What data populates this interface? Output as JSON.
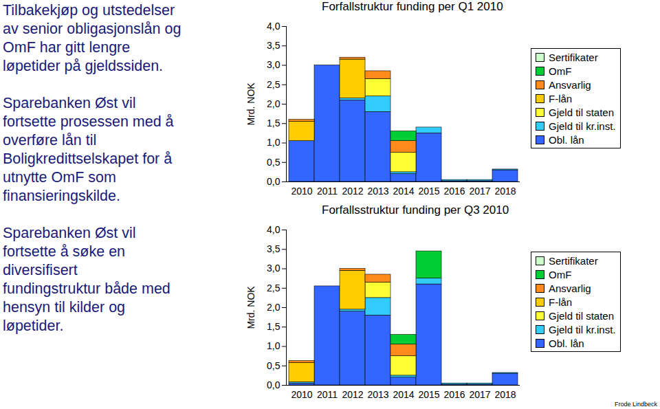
{
  "slide": {
    "paragraphs": [
      [
        "Tilbakekjøp og utstedelser",
        "av senior obligasjonslån og",
        "OmF har gitt lengre",
        "løpetider på gjeldssiden."
      ],
      [
        "Sparebanken Øst vil",
        "fortsette prosessen med å",
        "overføre lån til",
        "Boligkredittselskapet for å",
        "utnytte OmF som",
        "finansieringskilde."
      ],
      [
        "Sparebanken Øst vil",
        "fortsette å søke en",
        "diversifisert",
        "fundingstruktur både med",
        "hensyn til kilder og",
        "løpetider."
      ]
    ],
    "footer": "Frode Lindbeck"
  },
  "chart_data": [
    {
      "type": "bar",
      "stacked": true,
      "legend": "right",
      "title": "Forfallstruktur funding per Q1 2010",
      "ylabel": "Mrd. NOK",
      "categories": [
        "2010",
        "2011",
        "2012",
        "2013",
        "2014",
        "2015",
        "2016",
        "2017",
        "2018"
      ],
      "ylim": [
        0,
        4
      ],
      "yticks": [
        {
          "value": 0,
          "label": "0,0"
        },
        {
          "value": 0.5,
          "label": "0,5"
        },
        {
          "value": 1,
          "label": "1,0"
        },
        {
          "value": 1.5,
          "label": "1,5"
        },
        {
          "value": 2,
          "label": "2,0"
        },
        {
          "value": 2.5,
          "label": "2,5"
        },
        {
          "value": 3,
          "label": "3,0"
        },
        {
          "value": 3.5,
          "label": "3,5"
        },
        {
          "value": 4,
          "label": "4,0"
        }
      ],
      "series": [
        {
          "name": "Obl. lån",
          "color": "#3366ff",
          "values": [
            1.05,
            3.0,
            2.1,
            1.8,
            0.2,
            1.25,
            0.02,
            0.02,
            0.3
          ]
        },
        {
          "name": "Gjeld til kr.inst.",
          "color": "#33ccff",
          "values": [
            0,
            0,
            0.05,
            0.4,
            0.05,
            0.15,
            0.03,
            0.03,
            0.02
          ]
        },
        {
          "name": "Gjeld til staten",
          "color": "#ffff33",
          "values": [
            0,
            0,
            0,
            0.45,
            0.5,
            0,
            0,
            0,
            0
          ]
        },
        {
          "name": "F-lån",
          "color": "#ffcc00",
          "values": [
            0.5,
            0,
            1.0,
            0,
            0,
            0,
            0,
            0,
            0
          ]
        },
        {
          "name": "Ansvarlig",
          "color": "#ff8c1a",
          "values": [
            0.05,
            0,
            0.05,
            0.2,
            0.3,
            0,
            0,
            0,
            0
          ]
        },
        {
          "name": "OmF",
          "color": "#00cc33",
          "values": [
            0,
            0,
            0,
            0,
            0.25,
            0,
            0,
            0,
            0
          ]
        },
        {
          "name": "Sertifikater",
          "color": "#ccffcc",
          "values": [
            0,
            0,
            0,
            0,
            0,
            0,
            0,
            0,
            0
          ]
        }
      ]
    },
    {
      "type": "bar",
      "stacked": true,
      "legend": "right",
      "title": "Forfallsstruktur funding per Q3 2010",
      "ylabel": "Mrd. NOK",
      "categories": [
        "2010",
        "2011",
        "2012",
        "2013",
        "2014",
        "2015",
        "2016",
        "2017",
        "2018"
      ],
      "ylim": [
        0,
        4
      ],
      "yticks": [
        {
          "value": 0,
          "label": "0,0"
        },
        {
          "value": 0.5,
          "label": "0,5"
        },
        {
          "value": 1,
          "label": "1,0"
        },
        {
          "value": 1.5,
          "label": "1,5"
        },
        {
          "value": 2,
          "label": "2,0"
        },
        {
          "value": 2.5,
          "label": "2,5"
        },
        {
          "value": 3,
          "label": "3,0"
        },
        {
          "value": 3.5,
          "label": "3,5"
        },
        {
          "value": 4,
          "label": "4,0"
        }
      ],
      "series": [
        {
          "name": "Obl. lån",
          "color": "#3366ff",
          "values": [
            0.05,
            2.55,
            1.9,
            1.8,
            0.2,
            2.6,
            0.02,
            0.02,
            0.3
          ]
        },
        {
          "name": "Gjeld til kr.inst.",
          "color": "#33ccff",
          "values": [
            0.03,
            0,
            0.05,
            0.45,
            0.05,
            0.15,
            0.03,
            0.03,
            0.02
          ]
        },
        {
          "name": "Gjeld til staten",
          "color": "#ffff33",
          "values": [
            0,
            0,
            0,
            0.4,
            0.5,
            0,
            0,
            0,
            0
          ]
        },
        {
          "name": "F-lån",
          "color": "#ffcc00",
          "values": [
            0.5,
            0,
            1.0,
            0,
            0,
            0,
            0,
            0,
            0
          ]
        },
        {
          "name": "Ansvarlig",
          "color": "#ff8c1a",
          "values": [
            0.05,
            0,
            0.05,
            0.2,
            0.3,
            0,
            0,
            0,
            0
          ]
        },
        {
          "name": "OmF",
          "color": "#00cc33",
          "values": [
            0,
            0,
            0,
            0,
            0.25,
            0.7,
            0,
            0,
            0
          ]
        },
        {
          "name": "Sertifikater",
          "color": "#ccffcc",
          "values": [
            0,
            0,
            0,
            0,
            0,
            0,
            0,
            0,
            0
          ]
        }
      ]
    }
  ]
}
